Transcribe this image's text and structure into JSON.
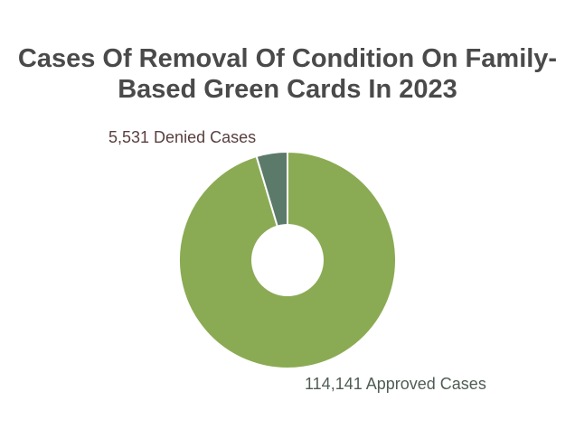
{
  "chart_data": {
    "type": "pie",
    "title_lines": [
      "Cases Of Removal Of Condition On Family-",
      "Based Green Cards In 2023"
    ],
    "donut": true,
    "slices": [
      {
        "label": "114,141 Approved Cases",
        "value": 114141,
        "color": "#8aab53"
      },
      {
        "label": "5,531 Denied Cases",
        "value": 5531,
        "color": "#5c7a6a"
      }
    ],
    "label_colors": {
      "approved": "#4f5d54",
      "denied": "#5a3f3f"
    }
  }
}
